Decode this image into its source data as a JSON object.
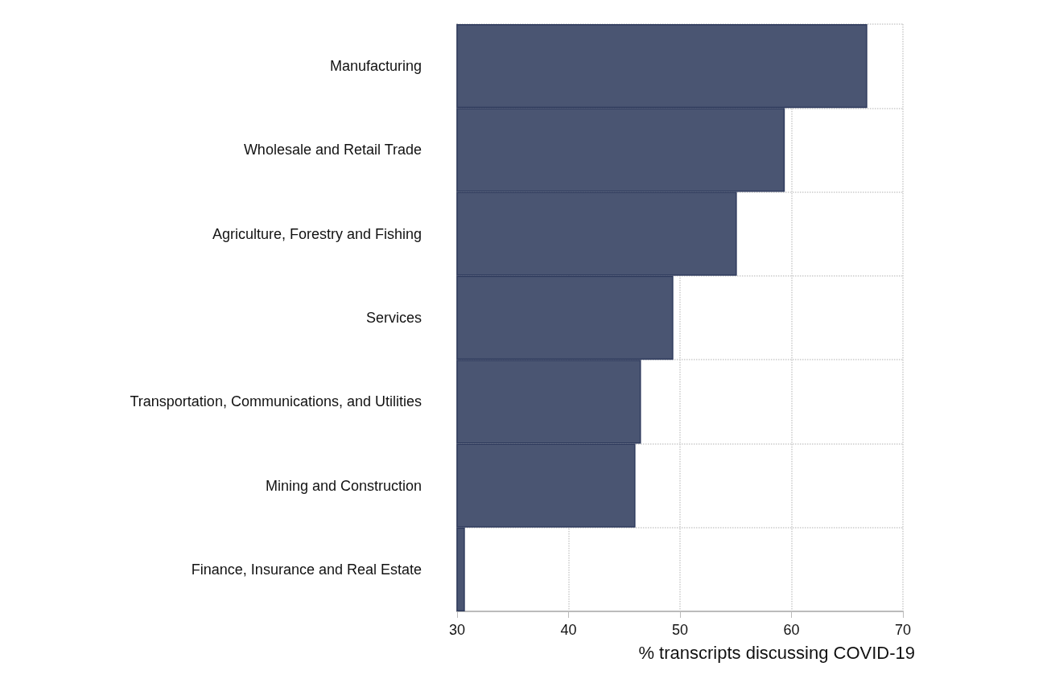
{
  "chart_data": {
    "type": "bar",
    "orientation": "horizontal",
    "xlabel": "% transcripts discussing COVID-19",
    "categories": [
      "Manufacturing",
      "Wholesale and Retail Trade",
      "Agriculture, Forestry and Fishing",
      "Services",
      "Transportation, Communications, and Utilities",
      "Mining and Construction",
      "Finance, Insurance and Real Estate"
    ],
    "values": [
      66.8,
      59.4,
      55.1,
      49.4,
      46.5,
      46.0,
      30.7
    ],
    "color": "#4a5572",
    "xlim": [
      30,
      70
    ],
    "xticks": [
      30,
      40,
      50,
      60,
      70
    ],
    "grid": true
  }
}
